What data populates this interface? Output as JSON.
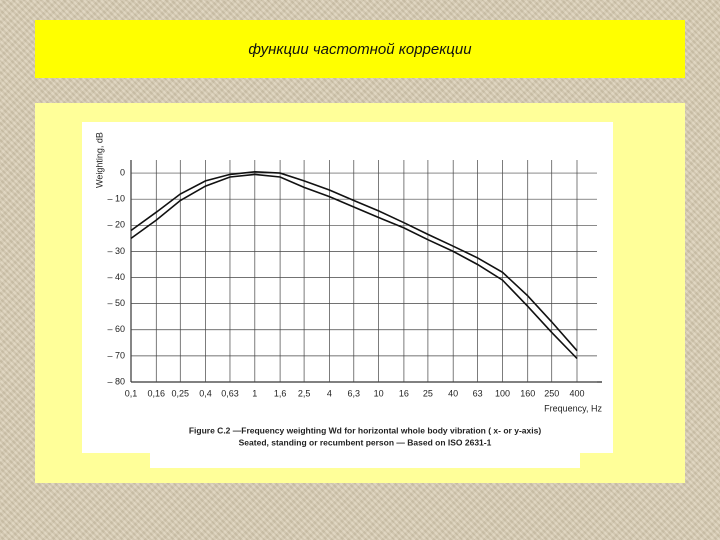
{
  "slide_title": "функции частотной коррекции",
  "chart_data": {
    "type": "line",
    "ylabel": "Weighting, dB",
    "xlabel": "Frequency, Hz",
    "caption": [
      "Figure C.2 —Frequency weighting Wd for horizontal whole body vibration ( x- or y-axis)",
      "Seated, standing or recumbent person — Based on ISO 2631-1"
    ],
    "log_x": true,
    "grid": true,
    "xlim": [
      0.1,
      400
    ],
    "ylim": [
      -80,
      5
    ],
    "xticks": [
      {
        "value": 0.1,
        "label": "0,1"
      },
      {
        "value": 0.16,
        "label": "0,16"
      },
      {
        "value": 0.25,
        "label": "0,25"
      },
      {
        "value": 0.4,
        "label": "0,4"
      },
      {
        "value": 0.63,
        "label": "0,63"
      },
      1,
      {
        "value": 1.6,
        "label": "1,6"
      },
      {
        "value": 2.5,
        "label": "2,5"
      },
      4,
      {
        "value": 6.3,
        "label": "6,3"
      },
      10,
      16,
      25,
      40,
      63,
      100,
      160,
      250,
      400
    ],
    "yticks": [
      0,
      {
        "value": -10,
        "label": "– 10"
      },
      {
        "value": -20,
        "label": "– 20"
      },
      {
        "value": -30,
        "label": "– 30"
      },
      {
        "value": -40,
        "label": "– 40"
      },
      {
        "value": -50,
        "label": "– 50"
      },
      {
        "value": -60,
        "label": "– 60"
      },
      {
        "value": -70,
        "label": "– 70"
      },
      {
        "value": -80,
        "label": "– 80"
      }
    ],
    "x": [
      0.1,
      0.16,
      0.25,
      0.4,
      0.63,
      1,
      1.6,
      2.5,
      4,
      6.3,
      10,
      16,
      25,
      40,
      63,
      100,
      160,
      250,
      400
    ],
    "series": [
      {
        "color": "#111111",
        "values": [
          -22,
          -15,
          -8,
          -3,
          -0.5,
          0.5,
          0,
          -3,
          -6.5,
          -10.5,
          -14.5,
          -19,
          -23.5,
          -28,
          -32.5,
          -38,
          -47,
          -57,
          -68
        ]
      },
      {
        "color": "#111111",
        "values": [
          -25,
          -18,
          -10.5,
          -5,
          -1.5,
          -0.5,
          -1.5,
          -5.5,
          -9,
          -13,
          -17,
          -21,
          -25.5,
          -30,
          -35,
          -41,
          -51,
          -61,
          -71
        ]
      }
    ]
  }
}
